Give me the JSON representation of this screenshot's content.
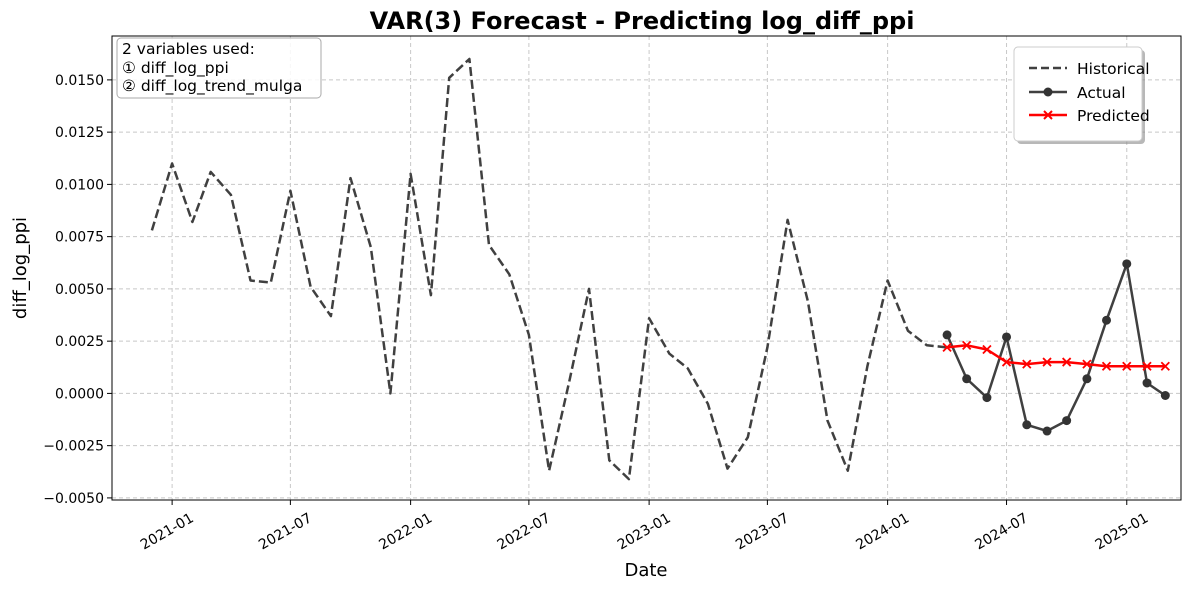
{
  "chart_data": {
    "type": "line",
    "title": "VAR(3) Forecast - Predicting log_diff_ppi",
    "xlabel": "Date",
    "ylabel": "diff_log_ppi",
    "ylim": [
      -0.0051,
      0.0171
    ],
    "xlim": [
      "2020-10-01",
      "2025-03-25"
    ],
    "x_ticks": [
      "2021-01",
      "2021-07",
      "2022-01",
      "2022-07",
      "2023-01",
      "2023-07",
      "2024-01",
      "2024-07",
      "2025-01"
    ],
    "y_ticks": [
      -0.005,
      -0.0025,
      0.0,
      0.0025,
      0.005,
      0.0075,
      0.01,
      0.0125,
      0.015
    ],
    "y_tick_labels": [
      "−0.0050",
      "−0.0025",
      "0.0000",
      "0.0025",
      "0.0050",
      "0.0075",
      "0.0100",
      "0.0125",
      "0.0150"
    ],
    "grid": true,
    "legend_position": "top-right",
    "annotation": {
      "lines": [
        "2 variables used:",
        "① diff_log_ppi",
        "② diff_log_trend_mulga"
      ],
      "position": "top-left"
    },
    "series": [
      {
        "name": "Historical",
        "style": "dashed",
        "color": "#404040",
        "x": [
          "2020-12",
          "2021-01",
          "2021-02",
          "2021-03",
          "2021-04",
          "2021-05",
          "2021-06",
          "2021-07",
          "2021-08",
          "2021-09",
          "2021-10",
          "2021-11",
          "2021-12",
          "2022-01",
          "2022-02",
          "2022-03",
          "2022-04",
          "2022-05",
          "2022-06",
          "2022-07",
          "2022-08",
          "2022-09",
          "2022-10",
          "2022-11",
          "2022-12",
          "2023-01",
          "2023-02",
          "2023-03",
          "2023-04",
          "2023-05",
          "2023-06",
          "2023-07",
          "2023-08",
          "2023-09",
          "2023-10",
          "2023-11",
          "2023-12",
          "2024-01",
          "2024-02",
          "2024-03",
          "2024-04"
        ],
        "values": [
          0.0078,
          0.011,
          0.0082,
          0.0106,
          0.0095,
          0.0054,
          0.0053,
          0.0097,
          0.0051,
          0.0037,
          0.0103,
          0.007,
          0.0,
          0.0105,
          0.0047,
          0.0151,
          0.016,
          0.0071,
          0.0057,
          0.0028,
          -0.0037,
          0.0006,
          0.005,
          -0.0032,
          -0.0041,
          0.0036,
          0.0019,
          0.0012,
          -0.0005,
          -0.0036,
          -0.0021,
          0.0022,
          0.0083,
          0.0044,
          -0.0013,
          -0.0037,
          0.0013,
          0.0054,
          0.003,
          0.0023,
          0.0022
        ]
      },
      {
        "name": "Actual",
        "style": "solid-circle",
        "color": "#404040",
        "x": [
          "2024-04",
          "2024-05",
          "2024-06",
          "2024-07",
          "2024-08",
          "2024-09",
          "2024-10",
          "2024-11",
          "2024-12",
          "2025-01",
          "2025-02",
          "2025-03"
        ],
        "values": [
          0.0028,
          0.0007,
          -0.0002,
          0.0027,
          -0.0015,
          -0.0018,
          -0.0013,
          0.0007,
          0.0035,
          0.0062,
          0.0005,
          -0.0001
        ]
      },
      {
        "name": "Predicted",
        "style": "solid-x",
        "color": "#ff0000",
        "x": [
          "2024-04",
          "2024-05",
          "2024-06",
          "2024-07",
          "2024-08",
          "2024-09",
          "2024-10",
          "2024-11",
          "2024-12",
          "2025-01",
          "2025-02",
          "2025-03"
        ],
        "values": [
          0.0022,
          0.0023,
          0.0021,
          0.0015,
          0.0014,
          0.0015,
          0.0015,
          0.0014,
          0.0013,
          0.0013,
          0.0013,
          0.0013
        ]
      }
    ]
  }
}
